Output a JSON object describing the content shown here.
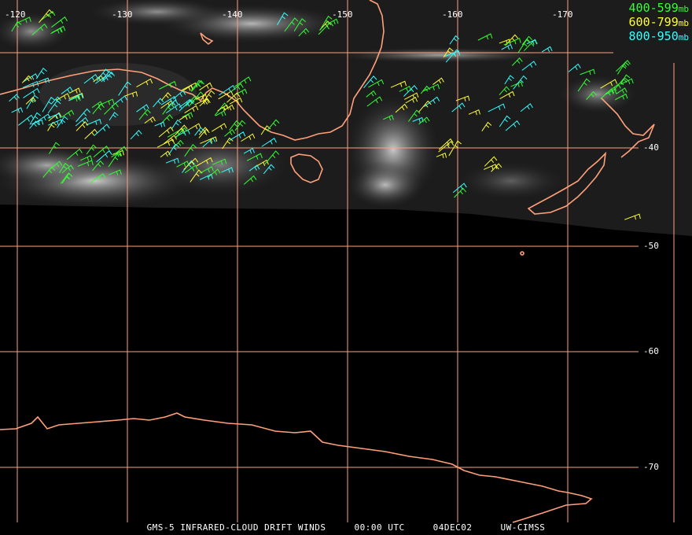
{
  "legend": [
    {
      "range": "400-599",
      "unit": "mb",
      "color": "#33ff33"
    },
    {
      "range": "600-799",
      "unit": "mb",
      "color": "#ffff33"
    },
    {
      "range": "800-950",
      "unit": "mb",
      "color": "#33ffff"
    }
  ],
  "longitude_labels": [
    "-120",
    "-130",
    "-140",
    "-150",
    "-160",
    "-170"
  ],
  "latitude_labels": [
    "-40",
    "-50",
    "-60",
    "-70"
  ],
  "footer": {
    "product": "GMS-5 INFRARED-CLOUD DRIFT WINDS",
    "time": "00:00 UTC",
    "date": "04DEC02",
    "source": "UW-CIMSS"
  },
  "colors": {
    "grid": "#ff9f7f",
    "coast": "#ffa07a",
    "background": "#000000"
  }
}
